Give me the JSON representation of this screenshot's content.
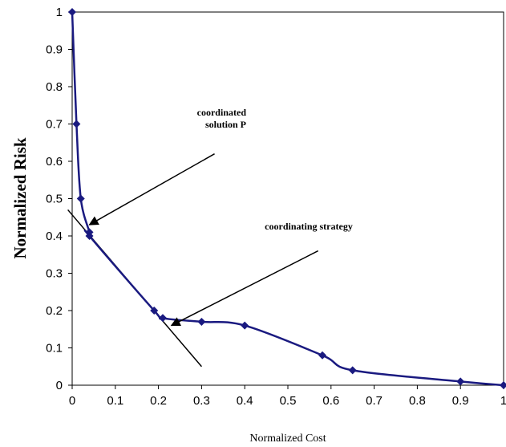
{
  "chart_data": {
    "type": "line",
    "title": "",
    "xlabel": "Normalized Cost",
    "ylabel": "Normalized Risk",
    "xlim": [
      0,
      1
    ],
    "ylim": [
      0,
      1
    ],
    "grid": false,
    "legend": "none",
    "x_ticks": [
      "0",
      "0.1",
      "0.2",
      "0.3",
      "0.4",
      "0.5",
      "0.6",
      "0.7",
      "0.8",
      "0.9",
      "1"
    ],
    "y_ticks": [
      "0",
      "0.1",
      "0.2",
      "0.3",
      "0.4",
      "0.5",
      "0.6",
      "0.7",
      "0.8",
      "0.9",
      "1"
    ],
    "series": [
      {
        "color": "#1a1a80",
        "marker": "diamond",
        "x": [
          0,
          0.01,
          0.02,
          0.04,
          0.04,
          0.19,
          0.21,
          0.3,
          0.4,
          0.58,
          0.65,
          0.9,
          1.0
        ],
        "y": [
          1.0,
          0.7,
          0.5,
          0.41,
          0.4,
          0.2,
          0.18,
          0.17,
          0.16,
          0.08,
          0.04,
          0.01,
          0.0
        ]
      }
    ],
    "tangent_line": {
      "x": [
        -0.01,
        0.3
      ],
      "y": [
        0.47,
        0.05
      ],
      "color": "#000000"
    },
    "annotations": [
      {
        "lines": [
          "coordinated",
          "solution P"
        ],
        "arrow_from": [
          0.33,
          0.62
        ],
        "arrow_to": [
          0.04,
          0.43
        ]
      },
      {
        "lines": [
          "coordinating strategy"
        ],
        "arrow_from": [
          0.57,
          0.36
        ],
        "arrow_to": [
          0.23,
          0.16
        ]
      }
    ]
  }
}
